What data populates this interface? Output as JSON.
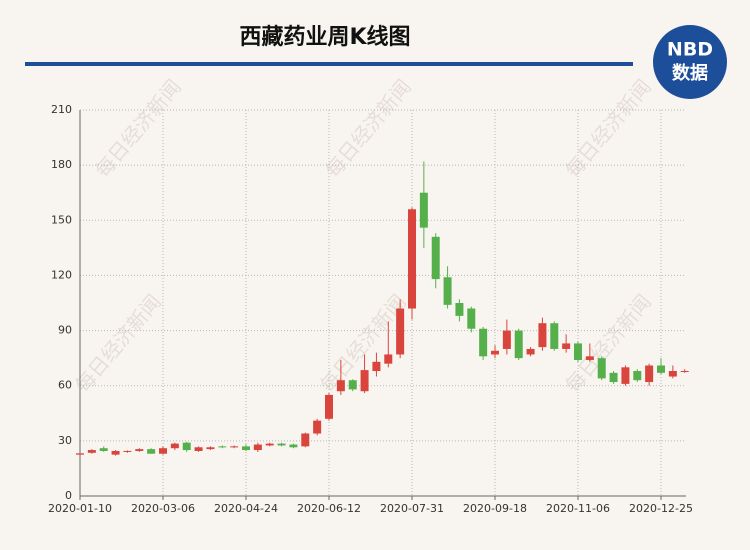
{
  "chart_data": {
    "type": "candlestick",
    "title": "西藏药业周K线图",
    "logo": {
      "top": "NBD",
      "bottom": "数据"
    },
    "watermark": "每日经济新闻",
    "categories": [
      "2020-01-10",
      null,
      null,
      null,
      null,
      null,
      null,
      "2020-03-06",
      null,
      null,
      null,
      null,
      null,
      null,
      "2020-04-24",
      null,
      null,
      null,
      null,
      null,
      null,
      "2020-06-12",
      null,
      null,
      null,
      null,
      null,
      null,
      "2020-07-31",
      null,
      null,
      null,
      null,
      null,
      null,
      "2020-09-18",
      null,
      null,
      null,
      null,
      null,
      null,
      "2020-11-06",
      null,
      null,
      null,
      null,
      null,
      null,
      "2020-12-25",
      null,
      null
    ],
    "open": [
      22.5,
      23.5,
      26,
      22.5,
      24,
      24.5,
      25.5,
      23,
      26,
      29,
      24.5,
      25.5,
      27,
      26.5,
      27,
      25,
      27.5,
      28.5,
      28,
      27,
      34,
      42,
      57,
      63,
      57,
      68,
      72,
      77,
      102,
      165,
      141,
      119,
      105,
      102,
      91,
      77,
      80,
      90,
      77,
      81,
      94,
      80,
      83,
      74,
      75,
      67,
      61,
      68,
      62,
      71,
      65,
      67.5
    ],
    "high": [
      23.5,
      25.5,
      27,
      25,
      24.8,
      26,
      26,
      27,
      29,
      29.5,
      27,
      27,
      27.5,
      27.5,
      28,
      29,
      29,
      29,
      28.5,
      34.5,
      42,
      56,
      74,
      63.5,
      77,
      78,
      95,
      107,
      157,
      182,
      143,
      125,
      107,
      103,
      92,
      82,
      96,
      91,
      81,
      97,
      95,
      88,
      84,
      83,
      76,
      68,
      71,
      69,
      72,
      75,
      71,
      69
    ],
    "low": [
      22,
      23,
      24,
      22,
      23.5,
      24,
      23,
      22.5,
      25,
      24,
      24,
      25,
      26,
      26,
      24.5,
      24,
      27,
      27,
      26,
      26.5,
      33,
      41,
      55,
      57,
      56,
      65,
      70,
      75,
      96,
      135,
      113,
      102,
      95,
      89,
      74,
      75,
      77,
      74,
      76,
      79,
      79,
      78,
      73,
      73,
      63,
      61,
      60,
      62,
      60,
      66,
      64,
      67
    ],
    "close": [
      23.2,
      25,
      24.5,
      24.5,
      24.5,
      25.5,
      23,
      26,
      28.5,
      25,
      26.5,
      26.5,
      26.5,
      27,
      25,
      28,
      28.5,
      27.5,
      26.5,
      34,
      41,
      55,
      63,
      58,
      68.5,
      73,
      77,
      102,
      156,
      146,
      118,
      104,
      98,
      91,
      76,
      79,
      90,
      75,
      80,
      94,
      80,
      83,
      74,
      76,
      64,
      62,
      70,
      63,
      71,
      67,
      68,
      68
    ],
    "up_color": "#d9443c",
    "down_color": "#55b04c",
    "ylim": [
      0,
      210
    ],
    "yticks": [
      0,
      30,
      60,
      90,
      120,
      150,
      180,
      210
    ],
    "grid": true
  }
}
